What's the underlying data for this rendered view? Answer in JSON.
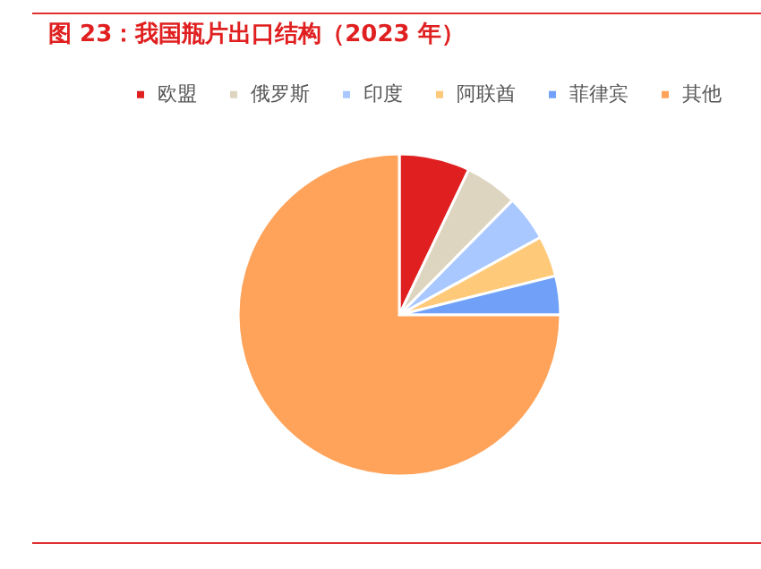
{
  "chart_data": {
    "type": "pie",
    "title": "图 23：我国瓶片出口结构（2023 年）",
    "categories": [
      "欧盟",
      "俄罗斯",
      "印度",
      "阿联酋",
      "菲律宾",
      "其他"
    ],
    "values": [
      7.1,
      5.3,
      4.6,
      4.1,
      3.9,
      75.0
    ],
    "colors": [
      "#e02020",
      "#ddd5c0",
      "#a8c8ff",
      "#ffc97a",
      "#70a0f8",
      "#ffa35a"
    ],
    "legend": "top"
  }
}
